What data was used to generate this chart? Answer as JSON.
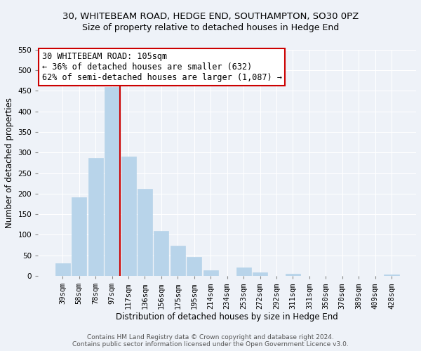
{
  "title_line1": "30, WHITEBEAM ROAD, HEDGE END, SOUTHAMPTON, SO30 0PZ",
  "title_line2": "Size of property relative to detached houses in Hedge End",
  "xlabel": "Distribution of detached houses by size in Hedge End",
  "ylabel": "Number of detached properties",
  "bar_labels": [
    "39sqm",
    "58sqm",
    "78sqm",
    "97sqm",
    "117sqm",
    "136sqm",
    "156sqm",
    "175sqm",
    "195sqm",
    "214sqm",
    "234sqm",
    "253sqm",
    "272sqm",
    "292sqm",
    "311sqm",
    "331sqm",
    "350sqm",
    "370sqm",
    "389sqm",
    "409sqm",
    "428sqm"
  ],
  "bar_values": [
    30,
    192,
    287,
    460,
    291,
    212,
    110,
    74,
    46,
    13,
    0,
    20,
    8,
    0,
    5,
    0,
    0,
    0,
    0,
    0,
    4
  ],
  "bar_color": "#b8d4ea",
  "bar_edge_color": "#b8d4ea",
  "vline_x": 3.5,
  "vline_color": "#cc0000",
  "ylim": [
    0,
    550
  ],
  "yticks": [
    0,
    50,
    100,
    150,
    200,
    250,
    300,
    350,
    400,
    450,
    500,
    550
  ],
  "annotation_line1": "30 WHITEBEAM ROAD: 105sqm",
  "annotation_line2": "← 36% of detached houses are smaller (632)",
  "annotation_line3": "62% of semi-detached houses are larger (1,087) →",
  "annotation_box_color": "white",
  "annotation_box_edge": "#cc0000",
  "footer_line1": "Contains HM Land Registry data © Crown copyright and database right 2024.",
  "footer_line2": "Contains public sector information licensed under the Open Government Licence v3.0.",
  "title_fontsize": 9.5,
  "subtitle_fontsize": 9,
  "axis_label_fontsize": 8.5,
  "tick_fontsize": 7.5,
  "annotation_fontsize": 8.5,
  "footer_fontsize": 6.5,
  "background_color": "#eef2f8",
  "plot_bg_color": "#eef2f8",
  "grid_color": "#ffffff"
}
